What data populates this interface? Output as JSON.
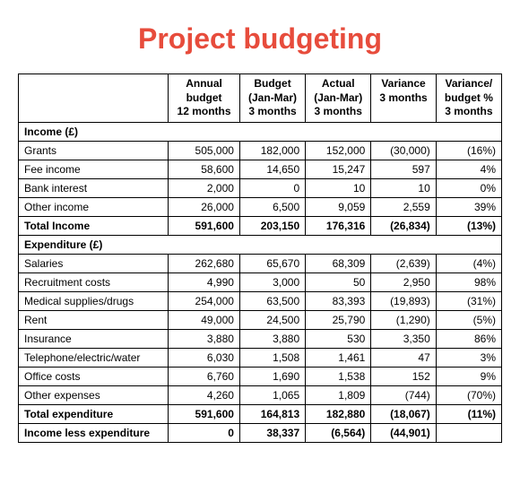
{
  "title": "Project budgeting",
  "title_color": "#e74c3c",
  "table": {
    "columns": [
      {
        "lines": [
          "Annual",
          "budget",
          "12 months"
        ]
      },
      {
        "lines": [
          "Budget",
          "(Jan-Mar)",
          "3 months"
        ]
      },
      {
        "lines": [
          "Actual",
          "(Jan-Mar)",
          "3 months"
        ]
      },
      {
        "lines": [
          "Variance",
          "3 months"
        ]
      },
      {
        "lines": [
          "Variance/",
          "budget %",
          "3 months"
        ]
      }
    ],
    "rows": [
      {
        "type": "section",
        "label": "Income (£)"
      },
      {
        "type": "data",
        "label": "Grants",
        "cells": [
          "505,000",
          "182,000",
          "152,000",
          "(30,000)",
          "(16%)"
        ]
      },
      {
        "type": "data",
        "label": "Fee income",
        "cells": [
          "58,600",
          "14,650",
          "15,247",
          "597",
          "4%"
        ]
      },
      {
        "type": "data",
        "label": "Bank interest",
        "cells": [
          "2,000",
          "0",
          "10",
          "10",
          "0%"
        ]
      },
      {
        "type": "data",
        "label": "Other income",
        "cells": [
          "26,000",
          "6,500",
          "9,059",
          "2,559",
          "39%"
        ]
      },
      {
        "type": "total",
        "label": "Total Income",
        "cells": [
          "591,600",
          "203,150",
          "176,316",
          "(26,834)",
          "(13%)"
        ]
      },
      {
        "type": "section",
        "label": "Expenditure (£)"
      },
      {
        "type": "data",
        "label": "Salaries",
        "cells": [
          "262,680",
          "65,670",
          "68,309",
          "(2,639)",
          "(4%)"
        ]
      },
      {
        "type": "data",
        "label": "Recruitment costs",
        "cells": [
          "4,990",
          "3,000",
          "50",
          "2,950",
          "98%"
        ]
      },
      {
        "type": "data",
        "label": "Medical supplies/drugs",
        "cells": [
          "254,000",
          "63,500",
          "83,393",
          "(19,893)",
          "(31%)"
        ]
      },
      {
        "type": "data",
        "label": "Rent",
        "cells": [
          "49,000",
          "24,500",
          "25,790",
          "(1,290)",
          "(5%)"
        ]
      },
      {
        "type": "data",
        "label": "Insurance",
        "cells": [
          "3,880",
          "3,880",
          "530",
          "3,350",
          "86%"
        ]
      },
      {
        "type": "data",
        "label": "Telephone/electric/water",
        "cells": [
          "6,030",
          "1,508",
          "1,461",
          "47",
          "3%"
        ]
      },
      {
        "type": "data",
        "label": "Office costs",
        "cells": [
          "6,760",
          "1,690",
          "1,538",
          "152",
          "9%"
        ]
      },
      {
        "type": "data",
        "label": "Other expenses",
        "cells": [
          "4,260",
          "1,065",
          "1,809",
          "(744)",
          "(70%)"
        ]
      },
      {
        "type": "total",
        "label": "Total expenditure",
        "cells": [
          "591,600",
          "164,813",
          "182,880",
          "(18,067)",
          "(11%)"
        ]
      },
      {
        "type": "total",
        "label": "Income less expenditure",
        "cells": [
          "0",
          "38,337",
          "(6,564)",
          "(44,901)",
          ""
        ]
      }
    ]
  }
}
